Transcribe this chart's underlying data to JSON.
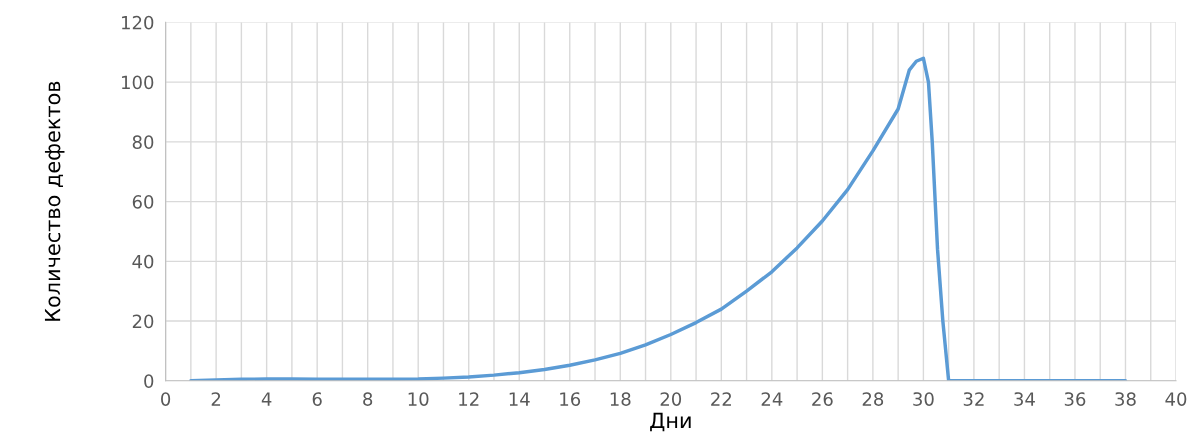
{
  "chart_data": {
    "type": "line",
    "xlabel": "Дни",
    "ylabel": "Количество дефектов",
    "x": [
      1,
      2,
      3,
      4,
      5,
      6,
      7,
      8,
      9,
      10,
      11,
      12,
      13,
      14,
      15,
      16,
      17,
      18,
      19,
      20,
      21,
      22,
      23,
      24,
      25,
      26,
      27,
      28,
      29,
      29.44,
      29.72,
      30,
      30.2,
      30.35,
      30.56,
      30.77,
      31,
      32,
      33,
      34,
      35,
      36,
      37,
      38
    ],
    "series": [
      {
        "color": "#5b9bd5",
        "values": [
          0,
          0.3,
          0.5,
          0.6,
          0.6,
          0.5,
          0.5,
          0.5,
          0.5,
          0.6,
          0.9,
          1.3,
          1.9,
          2.7,
          3.8,
          5.2,
          7,
          9.2,
          12,
          15.5,
          19.5,
          24,
          30,
          36.5,
          44.5,
          53.5,
          64,
          77,
          91,
          104,
          107,
          108,
          100,
          80,
          44,
          20,
          0,
          0,
          0,
          0,
          0,
          0,
          0,
          0
        ]
      }
    ],
    "xlim": [
      0,
      40
    ],
    "xticks": [
      0,
      {
        "value": 1,
        "label": null
      },
      2,
      {
        "value": 3,
        "label": null
      },
      4,
      {
        "value": 5,
        "label": null
      },
      6,
      {
        "value": 7,
        "label": null
      },
      8,
      {
        "value": 9,
        "label": null
      },
      10,
      {
        "value": 11,
        "label": null
      },
      12,
      {
        "value": 13,
        "label": null
      },
      14,
      {
        "value": 15,
        "label": null
      },
      16,
      {
        "value": 17,
        "label": null
      },
      18,
      {
        "value": 19,
        "label": null
      },
      20,
      {
        "value": 21,
        "label": null
      },
      22,
      {
        "value": 23,
        "label": null
      },
      24,
      {
        "value": 25,
        "label": null
      },
      26,
      {
        "value": 27,
        "label": null
      },
      28,
      {
        "value": 29,
        "label": null
      },
      30,
      {
        "value": 31,
        "label": null
      },
      32,
      {
        "value": 33,
        "label": null
      },
      34,
      {
        "value": 35,
        "label": null
      },
      36,
      {
        "value": 37,
        "label": null
      },
      38,
      {
        "value": 39,
        "label": null
      },
      40
    ],
    "ylim": [
      0,
      120
    ],
    "yticks": [
      0,
      20,
      40,
      60,
      80,
      100,
      120
    ],
    "grid": true,
    "marker": "none",
    "line_style": "solid"
  }
}
